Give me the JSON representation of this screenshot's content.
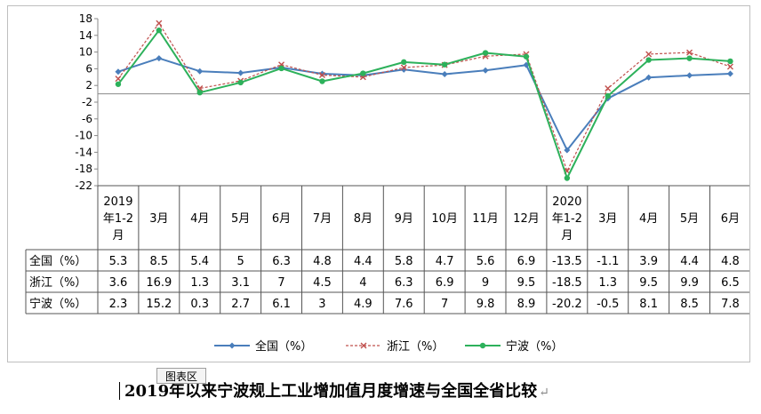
{
  "chart_data": {
    "type": "line",
    "categories": [
      "2019\n年1-2\n月",
      "3月",
      "4月",
      "5月",
      "6月",
      "7月",
      "8月",
      "9月",
      "10月",
      "11月",
      "12月",
      "2020\n年1-2\n月",
      "3月",
      "4月",
      "5月",
      "6月"
    ],
    "series": [
      {
        "name": "全国（%）",
        "color": "#4a7ebb",
        "marker": "diamond",
        "dash": false,
        "values": [
          5.3,
          8.5,
          5.4,
          5,
          6.3,
          4.8,
          4.4,
          5.8,
          4.7,
          5.6,
          6.9,
          -13.5,
          -1.1,
          3.9,
          4.4,
          4.8
        ]
      },
      {
        "name": "浙江（%）",
        "color": "#c0504d",
        "marker": "x",
        "dash": true,
        "values": [
          3.6,
          16.9,
          1.3,
          3.1,
          7,
          4.5,
          4,
          6.3,
          6.9,
          9,
          9.5,
          -18.5,
          1.3,
          9.5,
          9.9,
          6.5
        ]
      },
      {
        "name": "宁波（%）",
        "color": "#2db15b",
        "marker": "circle",
        "dash": false,
        "values": [
          2.3,
          15.2,
          0.3,
          2.7,
          6.1,
          3,
          4.9,
          7.6,
          7,
          9.8,
          8.9,
          -20.2,
          -0.5,
          8.1,
          8.5,
          7.8
        ]
      }
    ],
    "table_labels": [
      "全国（%）",
      "浙江（%）",
      "宁波（%）"
    ],
    "table_cells": [
      [
        "5.3",
        "8.5",
        "5.4",
        "5",
        "6.3",
        "4.8",
        "4.4",
        "5.8",
        "4.7",
        "5.6",
        "6.9",
        "-13.5",
        "-1.1",
        "3.9",
        "4.4",
        "4.8"
      ],
      [
        "3.6",
        "16.9",
        "1.3",
        "3.1",
        "7",
        "4.5",
        "4",
        "6.3",
        "6.9",
        "9",
        "9.5",
        "-18.5",
        "1.3",
        "9.5",
        "9.9",
        "6.5"
      ],
      [
        "2.3",
        "15.2",
        "0.3",
        "2.7",
        "6.1",
        "3",
        "4.9",
        "7.6",
        "7",
        "9.8",
        "8.9",
        "-20.2",
        "-0.5",
        "8.1",
        "8.5",
        "7.8"
      ]
    ],
    "ylim": [
      -22,
      18
    ],
    "yticks": [
      18,
      14,
      10,
      6,
      2,
      -2,
      -6,
      -10,
      -14,
      -18,
      -22
    ],
    "grid": false,
    "legend_placement": "bottom",
    "title": ""
  },
  "caption": "2019年以来宁波规上工业增加值月度增速与全国全省比较",
  "caption_return_mark": "↵",
  "chart_area_tag": "图表区"
}
